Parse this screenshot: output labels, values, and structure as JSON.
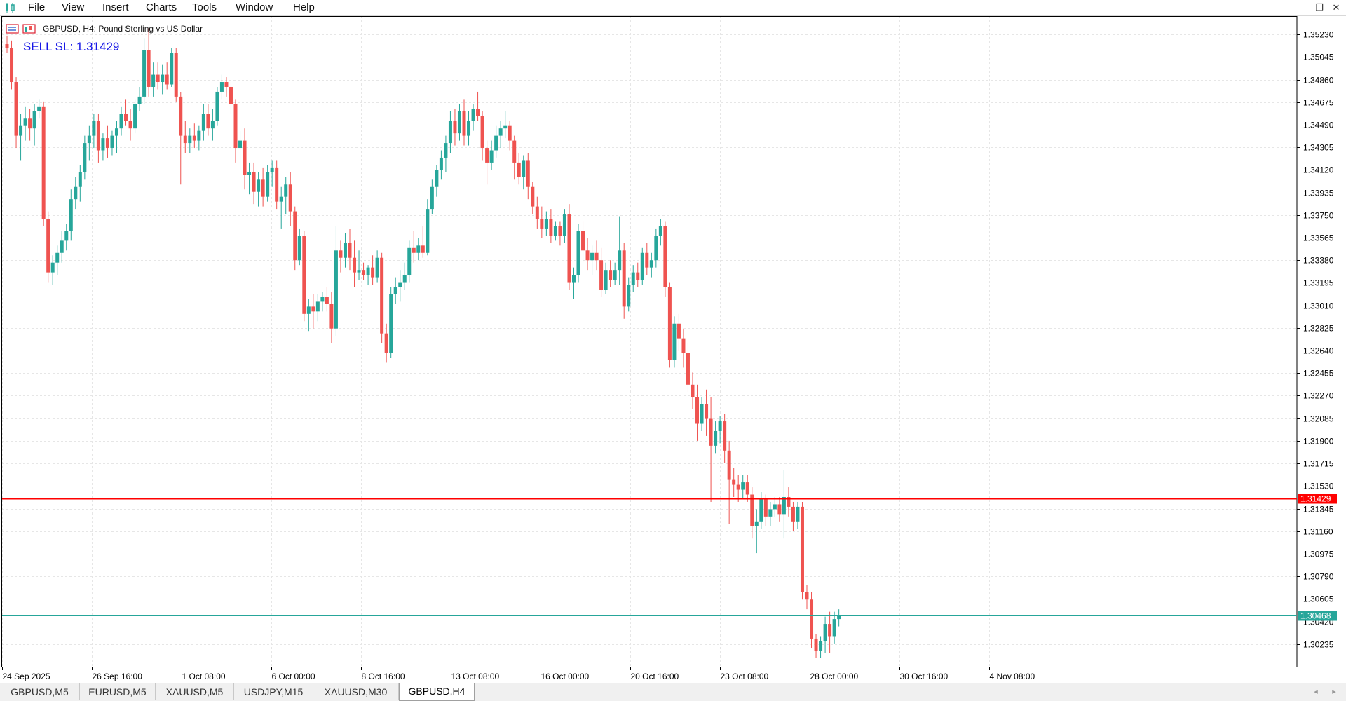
{
  "menu": {
    "items": [
      "File",
      "View",
      "Insert",
      "Charts",
      "Tools",
      "Window",
      "Help"
    ],
    "window_buttons": {
      "minimize": "–",
      "restore": "❐",
      "close": "✕"
    }
  },
  "chart": {
    "title": "GBPUSD, H4:  Pound Sterling vs US Dollar",
    "annotation": "SELL SL: 1.31429",
    "price_axis": {
      "min": 1.3005,
      "max": 1.3538,
      "ticks": [
        "1.35230",
        "1.35045",
        "1.34860",
        "1.34675",
        "1.34490",
        "1.34305",
        "1.34120",
        "1.33935",
        "1.33750",
        "1.33565",
        "1.33380",
        "1.33195",
        "1.33010",
        "1.32825",
        "1.32640",
        "1.32455",
        "1.32270",
        "1.32085",
        "1.31900",
        "1.31715",
        "1.31530",
        "1.31345",
        "1.31160",
        "1.30975",
        "1.30790",
        "1.30605",
        "1.30420",
        "1.30235"
      ]
    },
    "time_axis": {
      "ticks": [
        "24 Sep 2025",
        "26 Sep 16:00",
        "1 Oct 08:00",
        "6 Oct 00:00",
        "8 Oct 16:00",
        "13 Oct 08:00",
        "16 Oct 00:00",
        "20 Oct 16:00",
        "23 Oct 08:00",
        "28 Oct 00:00",
        "30 Oct 16:00",
        "4 Nov 08:00"
      ]
    },
    "lines": [
      {
        "name": "sell-sl-line",
        "price": 1.31429,
        "label": "1.31429",
        "color": "#ff0000"
      },
      {
        "name": "bid-line",
        "price": 1.30468,
        "label": "1.30468",
        "color": "#26a69a"
      }
    ],
    "colors": {
      "bull": "#26a69a",
      "bear": "#ef5350",
      "grid": "#e6e6e6",
      "axis": "#000000"
    },
    "candles": [
      [
        1.3515,
        1.3522,
        1.3508,
        1.3512
      ],
      [
        1.3512,
        1.3518,
        1.3478,
        1.3484
      ],
      [
        1.3484,
        1.3488,
        1.343,
        1.344
      ],
      [
        1.344,
        1.3458,
        1.342,
        1.3448
      ],
      [
        1.3448,
        1.3464,
        1.3436,
        1.3454
      ],
      [
        1.3454,
        1.3462,
        1.3436,
        1.3446
      ],
      [
        1.3446,
        1.3466,
        1.3432,
        1.346
      ],
      [
        1.346,
        1.347,
        1.3454,
        1.3464
      ],
      [
        1.3464,
        1.3468,
        1.3366,
        1.3372
      ],
      [
        1.3372,
        1.3378,
        1.332,
        1.3328
      ],
      [
        1.3328,
        1.3342,
        1.3318,
        1.3336
      ],
      [
        1.3336,
        1.335,
        1.3326,
        1.3344
      ],
      [
        1.3344,
        1.3362,
        1.3336,
        1.3354
      ],
      [
        1.3354,
        1.3368,
        1.3346,
        1.3362
      ],
      [
        1.3362,
        1.3396,
        1.3354,
        1.3388
      ],
      [
        1.3388,
        1.3406,
        1.338,
        1.3398
      ],
      [
        1.3398,
        1.3416,
        1.3386,
        1.341
      ],
      [
        1.341,
        1.344,
        1.3404,
        1.3434
      ],
      [
        1.3434,
        1.3448,
        1.342,
        1.344
      ],
      [
        1.344,
        1.3458,
        1.343,
        1.3452
      ],
      [
        1.3452,
        1.3458,
        1.3418,
        1.3428
      ],
      [
        1.3428,
        1.3442,
        1.342,
        1.3438
      ],
      [
        1.3438,
        1.3448,
        1.3422,
        1.343
      ],
      [
        1.343,
        1.3444,
        1.3424,
        1.344
      ],
      [
        1.344,
        1.3452,
        1.3426,
        1.3446
      ],
      [
        1.3446,
        1.3464,
        1.344,
        1.3458
      ],
      [
        1.3458,
        1.347,
        1.3448,
        1.3452
      ],
      [
        1.3452,
        1.3462,
        1.3436,
        1.3446
      ],
      [
        1.3446,
        1.347,
        1.3442,
        1.3466
      ],
      [
        1.3466,
        1.348,
        1.346,
        1.3472
      ],
      [
        1.3472,
        1.352,
        1.3466,
        1.351
      ],
      [
        1.351,
        1.3528,
        1.3472,
        1.348
      ],
      [
        1.348,
        1.35,
        1.3472,
        1.349
      ],
      [
        1.349,
        1.35,
        1.3478,
        1.3484
      ],
      [
        1.3484,
        1.3498,
        1.3474,
        1.349
      ],
      [
        1.349,
        1.35,
        1.3478,
        1.3482
      ],
      [
        1.3482,
        1.3512,
        1.348,
        1.3508
      ],
      [
        1.3508,
        1.3512,
        1.3468,
        1.3472
      ],
      [
        1.3472,
        1.3476,
        1.34,
        1.344
      ],
      [
        1.344,
        1.3452,
        1.3426,
        1.3434
      ],
      [
        1.3434,
        1.3446,
        1.3426,
        1.344
      ],
      [
        1.344,
        1.345,
        1.343,
        1.3436
      ],
      [
        1.3436,
        1.3448,
        1.3428,
        1.3444
      ],
      [
        1.3444,
        1.3466,
        1.3436,
        1.3458
      ],
      [
        1.3458,
        1.3466,
        1.344,
        1.3446
      ],
      [
        1.3446,
        1.3462,
        1.3436,
        1.3452
      ],
      [
        1.3452,
        1.348,
        1.3448,
        1.3476
      ],
      [
        1.3476,
        1.349,
        1.347,
        1.3484
      ],
      [
        1.3484,
        1.3488,
        1.3472,
        1.348
      ],
      [
        1.348,
        1.3484,
        1.3458,
        1.3466
      ],
      [
        1.3466,
        1.347,
        1.3418,
        1.343
      ],
      [
        1.343,
        1.3444,
        1.3412,
        1.3436
      ],
      [
        1.3436,
        1.3446,
        1.3396,
        1.3408
      ],
      [
        1.3408,
        1.3418,
        1.3392,
        1.341
      ],
      [
        1.341,
        1.3418,
        1.3384,
        1.3394
      ],
      [
        1.3394,
        1.341,
        1.3382,
        1.3404
      ],
      [
        1.3404,
        1.3414,
        1.3382,
        1.339
      ],
      [
        1.339,
        1.3416,
        1.3386,
        1.341
      ],
      [
        1.341,
        1.342,
        1.3398,
        1.3414
      ],
      [
        1.3414,
        1.342,
        1.338,
        1.3386
      ],
      [
        1.3386,
        1.3398,
        1.3364,
        1.339
      ],
      [
        1.339,
        1.3406,
        1.3376,
        1.34
      ],
      [
        1.34,
        1.341,
        1.3366,
        1.3378
      ],
      [
        1.3378,
        1.3382,
        1.333,
        1.3338
      ],
      [
        1.3338,
        1.3364,
        1.3334,
        1.3358
      ],
      [
        1.3358,
        1.3362,
        1.3288,
        1.3294
      ],
      [
        1.3294,
        1.3306,
        1.328,
        1.33
      ],
      [
        1.33,
        1.331,
        1.3282,
        1.3296
      ],
      [
        1.3296,
        1.331,
        1.3288,
        1.3304
      ],
      [
        1.3304,
        1.3312,
        1.3296,
        1.3308
      ],
      [
        1.3308,
        1.3316,
        1.3296,
        1.3302
      ],
      [
        1.3302,
        1.3312,
        1.327,
        1.3282
      ],
      [
        1.3282,
        1.3366,
        1.3276,
        1.3346
      ],
      [
        1.3346,
        1.3354,
        1.3328,
        1.334
      ],
      [
        1.334,
        1.336,
        1.3332,
        1.3352
      ],
      [
        1.3352,
        1.3364,
        1.333,
        1.334
      ],
      [
        1.334,
        1.3354,
        1.3316,
        1.3328
      ],
      [
        1.3328,
        1.3346,
        1.3322,
        1.333
      ],
      [
        1.333,
        1.3336,
        1.3322,
        1.3326
      ],
      [
        1.3326,
        1.3334,
        1.3318,
        1.3332
      ],
      [
        1.3332,
        1.3342,
        1.3318,
        1.3324
      ],
      [
        1.3324,
        1.3346,
        1.332,
        1.334
      ],
      [
        1.334,
        1.3344,
        1.327,
        1.3278
      ],
      [
        1.3278,
        1.3286,
        1.3254,
        1.3262
      ],
      [
        1.3262,
        1.3316,
        1.3258,
        1.331
      ],
      [
        1.331,
        1.3324,
        1.3302,
        1.3316
      ],
      [
        1.3316,
        1.333,
        1.3304,
        1.332
      ],
      [
        1.332,
        1.3336,
        1.3314,
        1.3326
      ],
      [
        1.3326,
        1.3354,
        1.332,
        1.3348
      ],
      [
        1.3348,
        1.3362,
        1.3336,
        1.3344
      ],
      [
        1.3344,
        1.3356,
        1.3338,
        1.335
      ],
      [
        1.335,
        1.3366,
        1.334,
        1.3344
      ],
      [
        1.3344,
        1.3388,
        1.3342,
        1.338
      ],
      [
        1.338,
        1.3404,
        1.3376,
        1.3398
      ],
      [
        1.3398,
        1.3416,
        1.339,
        1.3412
      ],
      [
        1.3412,
        1.3428,
        1.3404,
        1.3422
      ],
      [
        1.3422,
        1.344,
        1.341,
        1.3434
      ],
      [
        1.3434,
        1.346,
        1.3426,
        1.3452
      ],
      [
        1.3452,
        1.3462,
        1.3432,
        1.3442
      ],
      [
        1.3442,
        1.3466,
        1.3436,
        1.346
      ],
      [
        1.346,
        1.347,
        1.3432,
        1.344
      ],
      [
        1.344,
        1.346,
        1.3432,
        1.3452
      ],
      [
        1.3452,
        1.3466,
        1.3444,
        1.3462
      ],
      [
        1.3462,
        1.3476,
        1.3452,
        1.3456
      ],
      [
        1.3456,
        1.346,
        1.342,
        1.343
      ],
      [
        1.343,
        1.3436,
        1.34,
        1.3418
      ],
      [
        1.3418,
        1.3436,
        1.3412,
        1.3428
      ],
      [
        1.3428,
        1.3448,
        1.3422,
        1.344
      ],
      [
        1.344,
        1.3452,
        1.343,
        1.3446
      ],
      [
        1.3446,
        1.346,
        1.3438,
        1.3448
      ],
      [
        1.3448,
        1.3452,
        1.3428,
        1.3436
      ],
      [
        1.3436,
        1.344,
        1.3404,
        1.3418
      ],
      [
        1.3418,
        1.3426,
        1.34,
        1.3406
      ],
      [
        1.3406,
        1.3424,
        1.3396,
        1.342
      ],
      [
        1.342,
        1.3426,
        1.3388,
        1.3398
      ],
      [
        1.3398,
        1.3402,
        1.3376,
        1.3382
      ],
      [
        1.3382,
        1.339,
        1.3364,
        1.3372
      ],
      [
        1.3372,
        1.3382,
        1.3356,
        1.3364
      ],
      [
        1.3364,
        1.3378,
        1.3358,
        1.3372
      ],
      [
        1.3372,
        1.338,
        1.3352,
        1.3358
      ],
      [
        1.3358,
        1.337,
        1.3354,
        1.3366
      ],
      [
        1.3366,
        1.337,
        1.335,
        1.3358
      ],
      [
        1.3358,
        1.338,
        1.3352,
        1.3376
      ],
      [
        1.3376,
        1.3384,
        1.3314,
        1.332
      ],
      [
        1.332,
        1.3332,
        1.3306,
        1.3326
      ],
      [
        1.3326,
        1.3368,
        1.332,
        1.3362
      ],
      [
        1.3362,
        1.337,
        1.3336,
        1.3346
      ],
      [
        1.3346,
        1.3356,
        1.333,
        1.3338
      ],
      [
        1.3338,
        1.335,
        1.3326,
        1.3344
      ],
      [
        1.3344,
        1.3354,
        1.333,
        1.3338
      ],
      [
        1.3338,
        1.3348,
        1.3308,
        1.3314
      ],
      [
        1.3314,
        1.3336,
        1.331,
        1.333
      ],
      [
        1.333,
        1.3338,
        1.3316,
        1.3322
      ],
      [
        1.3322,
        1.3336,
        1.3318,
        1.333
      ],
      [
        1.333,
        1.3374,
        1.3318,
        1.3346
      ],
      [
        1.3346,
        1.3352,
        1.329,
        1.33
      ],
      [
        1.33,
        1.3324,
        1.3296,
        1.3318
      ],
      [
        1.3318,
        1.3334,
        1.3312,
        1.3328
      ],
      [
        1.3328,
        1.3336,
        1.3316,
        1.3322
      ],
      [
        1.3322,
        1.3348,
        1.3318,
        1.3344
      ],
      [
        1.3344,
        1.3352,
        1.3326,
        1.3332
      ],
      [
        1.3332,
        1.3344,
        1.3324,
        1.3338
      ],
      [
        1.3338,
        1.3364,
        1.3332,
        1.3358
      ],
      [
        1.3358,
        1.3372,
        1.335,
        1.3366
      ],
      [
        1.3366,
        1.337,
        1.3308,
        1.3316
      ],
      [
        1.3316,
        1.332,
        1.325,
        1.3256
      ],
      [
        1.3256,
        1.3292,
        1.325,
        1.3286
      ],
      [
        1.3286,
        1.3294,
        1.3264,
        1.3274
      ],
      [
        1.3274,
        1.3282,
        1.325,
        1.3262
      ],
      [
        1.3262,
        1.327,
        1.323,
        1.3236
      ],
      [
        1.3236,
        1.3246,
        1.3216,
        1.3226
      ],
      [
        1.3226,
        1.3236,
        1.319,
        1.3204
      ],
      [
        1.3204,
        1.3226,
        1.3198,
        1.322
      ],
      [
        1.322,
        1.3232,
        1.3194,
        1.3208
      ],
      [
        1.3208,
        1.3226,
        1.314,
        1.3186
      ],
      [
        1.3186,
        1.3206,
        1.318,
        1.3198
      ],
      [
        1.3198,
        1.321,
        1.3188,
        1.3206
      ],
      [
        1.3206,
        1.3212,
        1.3172,
        1.3182
      ],
      [
        1.3182,
        1.319,
        1.3122,
        1.3158
      ],
      [
        1.3158,
        1.3168,
        1.3144,
        1.3154
      ],
      [
        1.3154,
        1.3162,
        1.314,
        1.315
      ],
      [
        1.315,
        1.3162,
        1.3142,
        1.3156
      ],
      [
        1.3156,
        1.3162,
        1.314,
        1.3146
      ],
      [
        1.3146,
        1.3152,
        1.311,
        1.312
      ],
      [
        1.312,
        1.3134,
        1.3098,
        1.3124
      ],
      [
        1.3124,
        1.3148,
        1.3118,
        1.3142
      ],
      [
        1.3142,
        1.3146,
        1.312,
        1.3128
      ],
      [
        1.3128,
        1.314,
        1.312,
        1.3134
      ],
      [
        1.3134,
        1.3144,
        1.3128,
        1.3138
      ],
      [
        1.3138,
        1.3144,
        1.3124,
        1.313
      ],
      [
        1.313,
        1.3166,
        1.311,
        1.3144
      ],
      [
        1.3144,
        1.3152,
        1.3128,
        1.3136
      ],
      [
        1.3136,
        1.314,
        1.3116,
        1.3124
      ],
      [
        1.3124,
        1.314,
        1.3118,
        1.3136
      ],
      [
        1.3136,
        1.314,
        1.306,
        1.3066
      ],
      [
        1.3066,
        1.3072,
        1.3052,
        1.306
      ],
      [
        1.306,
        1.3066,
        1.302,
        1.3028
      ],
      [
        1.3028,
        1.3032,
        1.3012,
        1.3018
      ],
      [
        1.3018,
        1.303,
        1.3012,
        1.3026
      ],
      [
        1.3026,
        1.3046,
        1.3016,
        1.304
      ],
      [
        1.304,
        1.305,
        1.3016,
        1.303
      ],
      [
        1.303,
        1.305,
        1.3024,
        1.3044
      ],
      [
        1.3044,
        1.3052,
        1.3038,
        1.3047
      ]
    ]
  },
  "tabs": {
    "items": [
      "GBPUSD,M5",
      "EURUSD,M5",
      "XAUUSD,M5",
      "USDJPY,M15",
      "XAUUSD,M30",
      "GBPUSD,H4"
    ],
    "active_index": 5,
    "scroll_left": "◂",
    "scroll_right": "▸"
  }
}
